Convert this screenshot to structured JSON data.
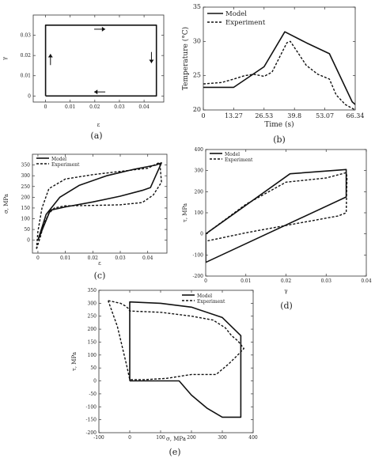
{
  "colors": {
    "line": "#111111",
    "axis": "#333333",
    "background": "#ffffff"
  },
  "chart_data": [
    {
      "id": "a",
      "type": "line",
      "caption": "(a)",
      "xlabel": "ε",
      "ylabel": "γ",
      "xlim": [
        -0.005,
        0.048
      ],
      "ylim": [
        -0.003,
        0.04
      ],
      "xticks": [
        0,
        0.01,
        0.02,
        0.03,
        0.04
      ],
      "xtick_labels": [
        "0",
        "0.01",
        "0.02",
        "0.03",
        "0.04"
      ],
      "yticks": [
        0,
        0.01,
        0.02,
        0.03
      ],
      "ytick_labels": [
        "0",
        "0.01",
        "0.02",
        "0.03"
      ],
      "series": [
        {
          "style": "solid",
          "x": [
            0,
            0.045,
            0.045,
            0,
            0
          ],
          "y": [
            0,
            0,
            0.035,
            0.035,
            0
          ]
        }
      ],
      "arrows": [
        {
          "direction": "right",
          "x": 0.022,
          "y": 0.033
        },
        {
          "direction": "down",
          "x": 0.043,
          "y": 0.019
        },
        {
          "direction": "left",
          "x": 0.022,
          "y": 0.002
        },
        {
          "direction": "up",
          "x": 0.002,
          "y": 0.018
        }
      ]
    },
    {
      "id": "b",
      "type": "line",
      "caption": "(b)",
      "xlabel": "Time (s)",
      "ylabel": "Temperature (°C)",
      "xlim": [
        0,
        66.34
      ],
      "ylim": [
        20,
        35
      ],
      "xticks": [
        0,
        13.27,
        26.53,
        39.8,
        53.07,
        66.34
      ],
      "xtick_labels": [
        "0",
        "13.27",
        "26.53",
        "39.8",
        "53.07",
        "66.34"
      ],
      "yticks": [
        20,
        25,
        30,
        35
      ],
      "ytick_labels": [
        "20",
        "25",
        "30",
        "35"
      ],
      "legend_position": "top-left",
      "series": [
        {
          "name": "Model",
          "style": "solid",
          "x": [
            0,
            13.27,
            26.53,
            35.6,
            45,
            55.07,
            65,
            66.34
          ],
          "y": [
            23.3,
            23.3,
            26.3,
            31.4,
            29.8,
            28.2,
            21.2,
            20.8
          ]
        },
        {
          "name": "Experiment",
          "style": "dashed",
          "x": [
            0,
            8,
            13.27,
            18,
            22,
            26.53,
            30,
            33,
            36.5,
            38,
            41,
            45,
            50,
            55.07,
            58,
            62,
            66.34
          ],
          "y": [
            23.8,
            24.0,
            24.5,
            25.0,
            25.2,
            24.9,
            25.5,
            27.5,
            29.8,
            30.0,
            28.5,
            26.5,
            25.2,
            24.5,
            22.2,
            20.8,
            20.0
          ]
        }
      ]
    },
    {
      "id": "c",
      "type": "line",
      "caption": "(c)",
      "xlabel": "ε",
      "ylabel": "σ, MPa",
      "xlim": [
        -0.002,
        0.047
      ],
      "ylim": [
        -60,
        400
      ],
      "xticks": [
        0,
        0.01,
        0.02,
        0.03,
        0.04
      ],
      "xtick_labels": [
        "0",
        "0.01",
        "0.02",
        "0.03",
        "0.04"
      ],
      "yticks": [
        0,
        50,
        100,
        150,
        200,
        250,
        300,
        350
      ],
      "ytick_labels": [
        "0",
        "50",
        "100",
        "150",
        "200",
        "250",
        "300",
        "350"
      ],
      "legend_position": "top-left",
      "series": [
        {
          "name": "Model",
          "style": "solid",
          "x": [
            0,
            0.0045,
            0.01,
            0.02,
            0.03,
            0.038,
            0.041,
            0.045,
            0.043,
            0.035,
            0.025,
            0.015,
            0.008,
            0.003,
            0
          ],
          "y": [
            0,
            140,
            155,
            178,
            205,
            232,
            245,
            360,
            350,
            330,
            300,
            255,
            200,
            120,
            0
          ]
        },
        {
          "name": "Experiment",
          "style": "dashed",
          "x": [
            -0.0005,
            0.001,
            0.002,
            0.004,
            0.006,
            0.01,
            0.02,
            0.03,
            0.038,
            0.042,
            0.044,
            0.045,
            0.0445,
            0.044,
            0.04,
            0.03,
            0.02,
            0.01,
            0.004,
            0.0015,
            0,
            -0.0005
          ],
          "y": [
            -40,
            20,
            70,
            125,
            150,
            160,
            162,
            165,
            175,
            210,
            250,
            270,
            350,
            360,
            335,
            320,
            305,
            285,
            240,
            150,
            40,
            -40
          ]
        }
      ]
    },
    {
      "id": "d",
      "type": "line",
      "caption": "(d)",
      "xlabel": "γ",
      "ylabel": "τ, MPa",
      "xlim": [
        0,
        0.04
      ],
      "ylim": [
        -200,
        400
      ],
      "xticks": [
        0,
        0.01,
        0.02,
        0.03,
        0.04
      ],
      "xtick_labels": [
        "0",
        "0.01",
        "0.02",
        "0.03",
        "0.04"
      ],
      "yticks": [
        -200,
        -100,
        0,
        100,
        200,
        300,
        400
      ],
      "ytick_labels": [
        "-200",
        "-100",
        "0",
        "100",
        "200",
        "300",
        "400"
      ],
      "legend_position": "top-left",
      "series": [
        {
          "name": "Model",
          "style": "solid",
          "x": [
            0,
            0.021,
            0.035,
            0.035,
            0.0,
            0
          ],
          "y": [
            0,
            285,
            305,
            175,
            -135,
            0
          ]
        },
        {
          "name": "Experiment",
          "style": "dashed",
          "x": [
            0,
            0.01,
            0.02,
            0.03,
            0.035,
            0.0352,
            0.035,
            0.033,
            0.02,
            0.01,
            0
          ],
          "y": [
            0,
            140,
            245,
            265,
            290,
            270,
            100,
            85,
            40,
            5,
            -35
          ]
        }
      ]
    },
    {
      "id": "e",
      "type": "line",
      "caption": "(e)",
      "xlabel": "σ, MPa",
      "ylabel": "τ, MPa",
      "xlim": [
        -100,
        400
      ],
      "ylim": [
        -200,
        350
      ],
      "xticks": [
        -100,
        0,
        100,
        200,
        300,
        400
      ],
      "xtick_labels": [
        "-100",
        "0",
        "100",
        "200",
        "300",
        "400"
      ],
      "yticks": [
        -200,
        -150,
        -100,
        -50,
        0,
        50,
        100,
        150,
        200,
        250,
        300,
        350
      ],
      "ytick_labels": [
        "-200",
        "-150",
        "-100",
        "-50",
        "0",
        "50",
        "100",
        "150",
        "200",
        "250",
        "300",
        "350"
      ],
      "legend_position": "top-right",
      "series": [
        {
          "name": "Model",
          "style": "solid",
          "x": [
            0,
            0,
            100,
            200,
            300,
            360,
            360,
            300,
            250,
            200,
            160,
            100,
            0
          ],
          "y": [
            0,
            305,
            300,
            285,
            245,
            175,
            -140,
            -140,
            -105,
            -55,
            0,
            0,
            0
          ]
        },
        {
          "name": "Experiment",
          "style": "dashed",
          "x": [
            -70,
            -50,
            -30,
            -15,
            -5,
            0,
            100,
            200,
            270,
            310,
            330,
            350,
            370,
            350,
            320,
            280,
            230,
            200,
            120,
            50,
            0,
            -10,
            -40,
            -70
          ],
          "y": [
            310,
            305,
            300,
            290,
            280,
            270,
            265,
            250,
            235,
            205,
            175,
            155,
            125,
            100,
            65,
            25,
            25,
            25,
            10,
            5,
            5,
            60,
            210,
            310
          ]
        }
      ]
    }
  ]
}
